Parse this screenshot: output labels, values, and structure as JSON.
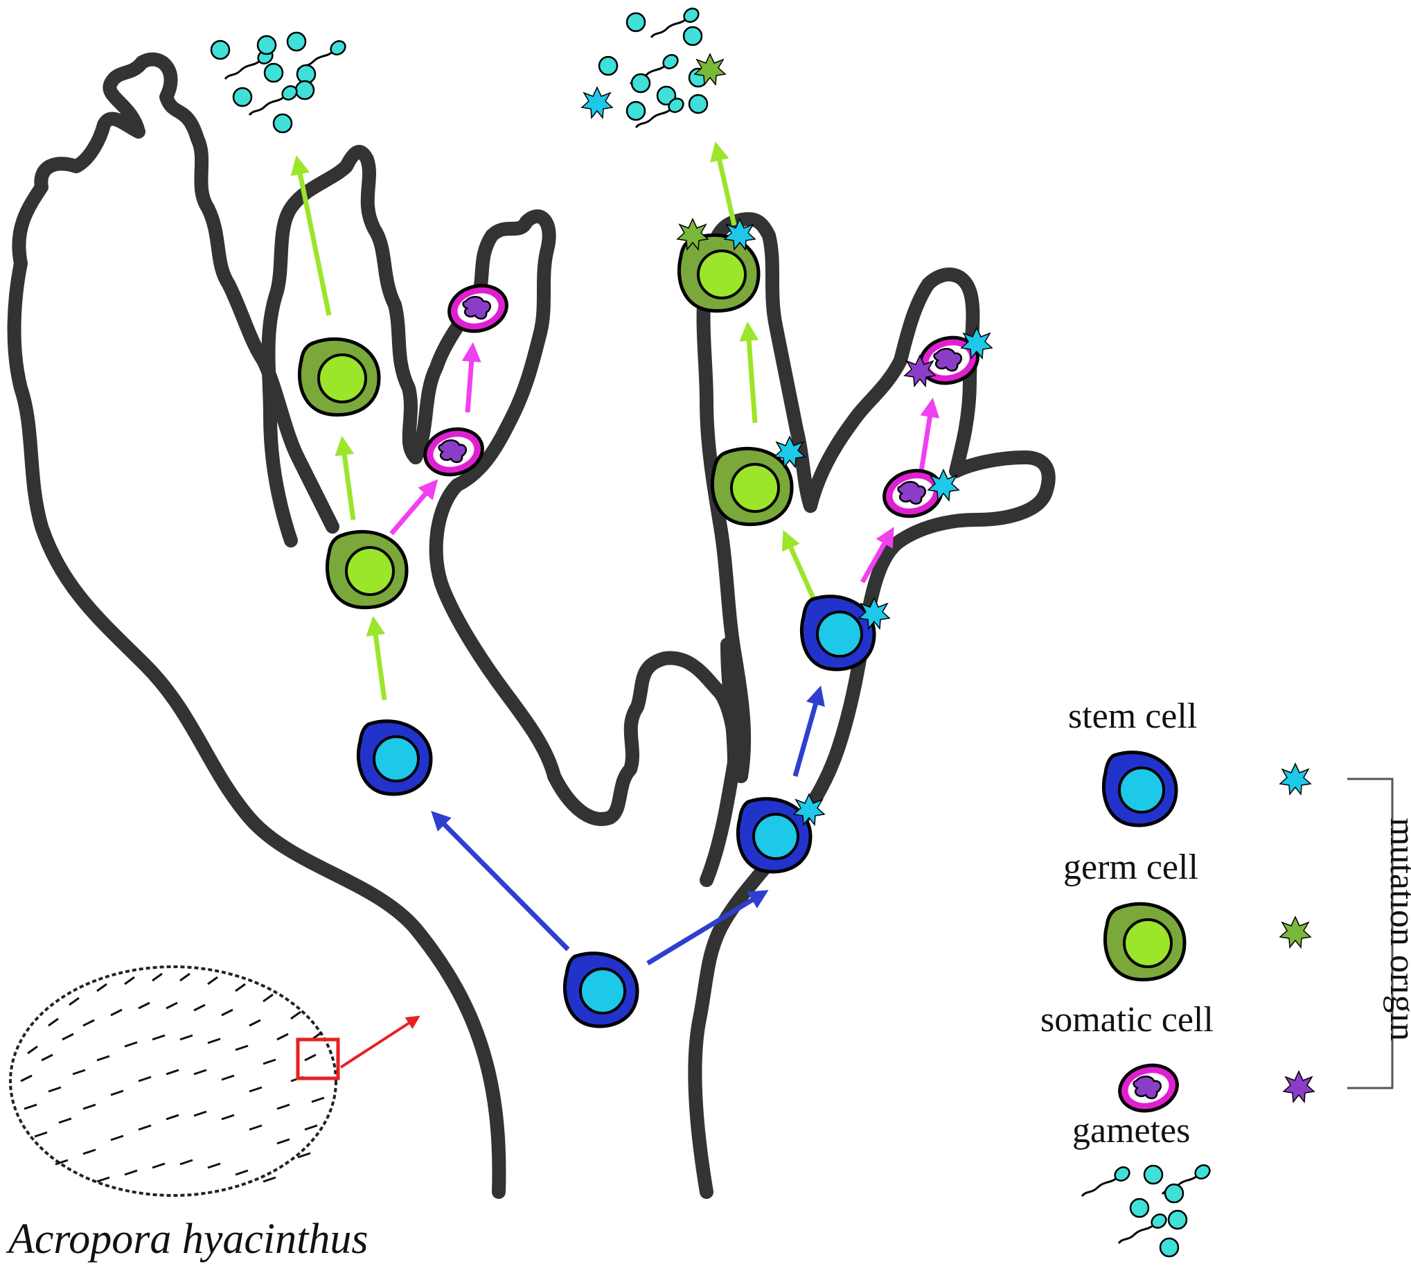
{
  "species_name": "Acropora hyacinthus",
  "legend": {
    "stem_cell": "stem cell",
    "germ_cell": "germ cell",
    "somatic_cell": "somatic cell",
    "gametes": "gametes",
    "mutation_origin": "mutation origin"
  },
  "colors": {
    "coral_outline": "#333333",
    "stem_outer": "#2233cc",
    "stem_inner": "#1ec8e8",
    "germ_outer": "#7aa83a",
    "germ_inner": "#9be52a",
    "somatic_outer": "#e020d0",
    "somatic_inner": "#8a3ec8",
    "gamete": "#3ee0d8",
    "arrow_stem": "#2e3fd0",
    "arrow_germ": "#9be52a",
    "arrow_somatic": "#f040f0",
    "arrow_zoom": "#e82020",
    "mutation_stem": "#1ec8e8",
    "mutation_germ": "#7ab83a",
    "mutation_somatic": "#8a3ec8"
  }
}
